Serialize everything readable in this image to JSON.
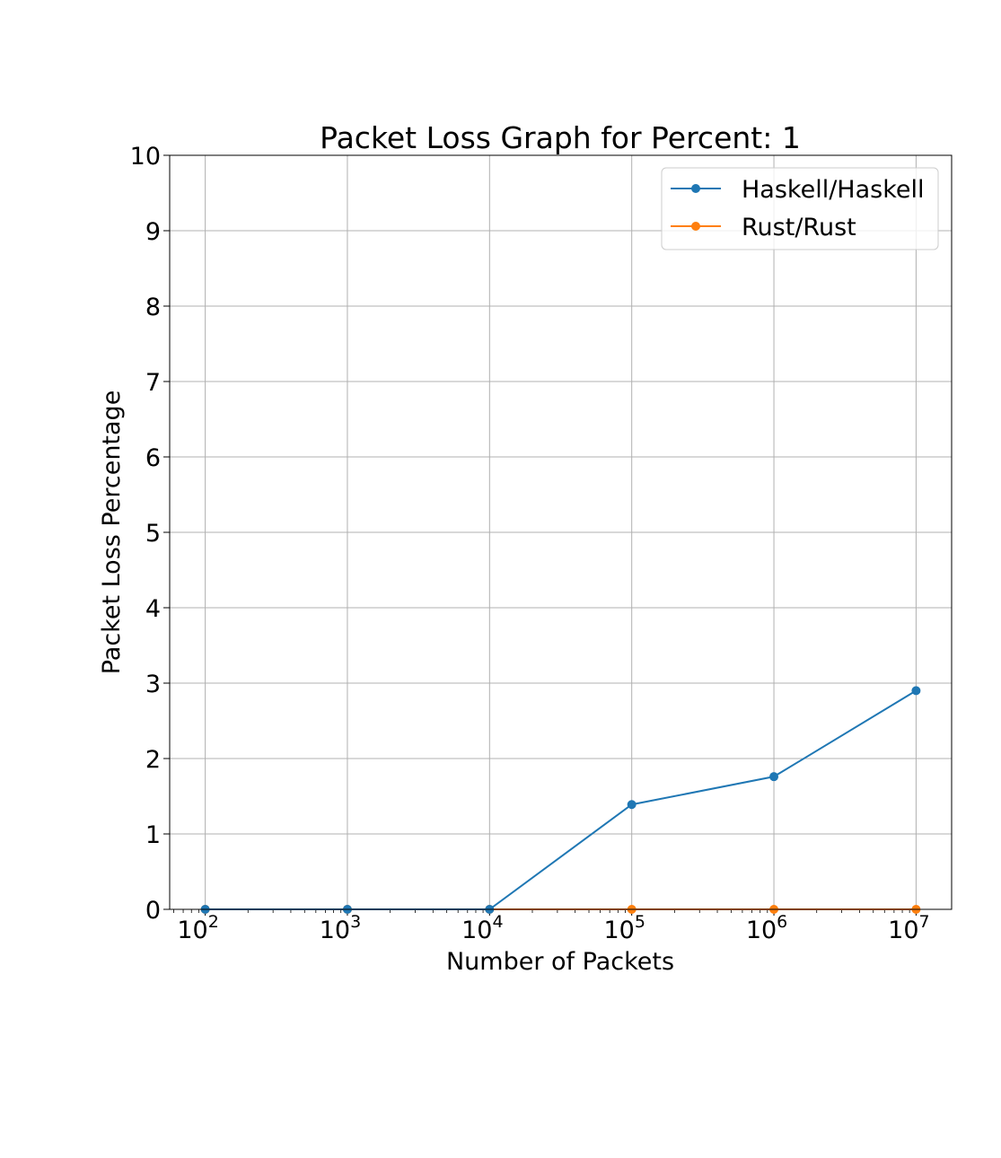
{
  "chart_data": {
    "type": "line",
    "title": "Packet Loss Graph for Percent: 1",
    "xlabel": "Number of Packets",
    "ylabel": "Packet Loss Percentage",
    "x_scale": "log",
    "x": [
      100,
      1000,
      10000,
      100000,
      1000000,
      10000000
    ],
    "x_ticks": [
      {
        "value": 100,
        "base": "10",
        "exp": "2"
      },
      {
        "value": 1000,
        "base": "10",
        "exp": "3"
      },
      {
        "value": 10000,
        "base": "10",
        "exp": "4"
      },
      {
        "value": 100000,
        "base": "10",
        "exp": "5"
      },
      {
        "value": 1000000,
        "base": "10",
        "exp": "6"
      },
      {
        "value": 10000000,
        "base": "10",
        "exp": "7"
      }
    ],
    "y_ticks": [
      "0",
      "1",
      "2",
      "3",
      "4",
      "5",
      "6",
      "7",
      "8",
      "9",
      "10"
    ],
    "ylim": [
      0,
      10
    ],
    "grid": true,
    "legend_position": "top-right",
    "series": [
      {
        "name": "Haskell/Haskell",
        "color": "#1f77b4",
        "values": [
          0,
          0,
          0,
          1.39,
          1.76,
          2.9
        ]
      },
      {
        "name": "Rust/Rust",
        "color": "#ff7f0e",
        "values": [
          0,
          0,
          0,
          0,
          0,
          0
        ]
      }
    ]
  }
}
